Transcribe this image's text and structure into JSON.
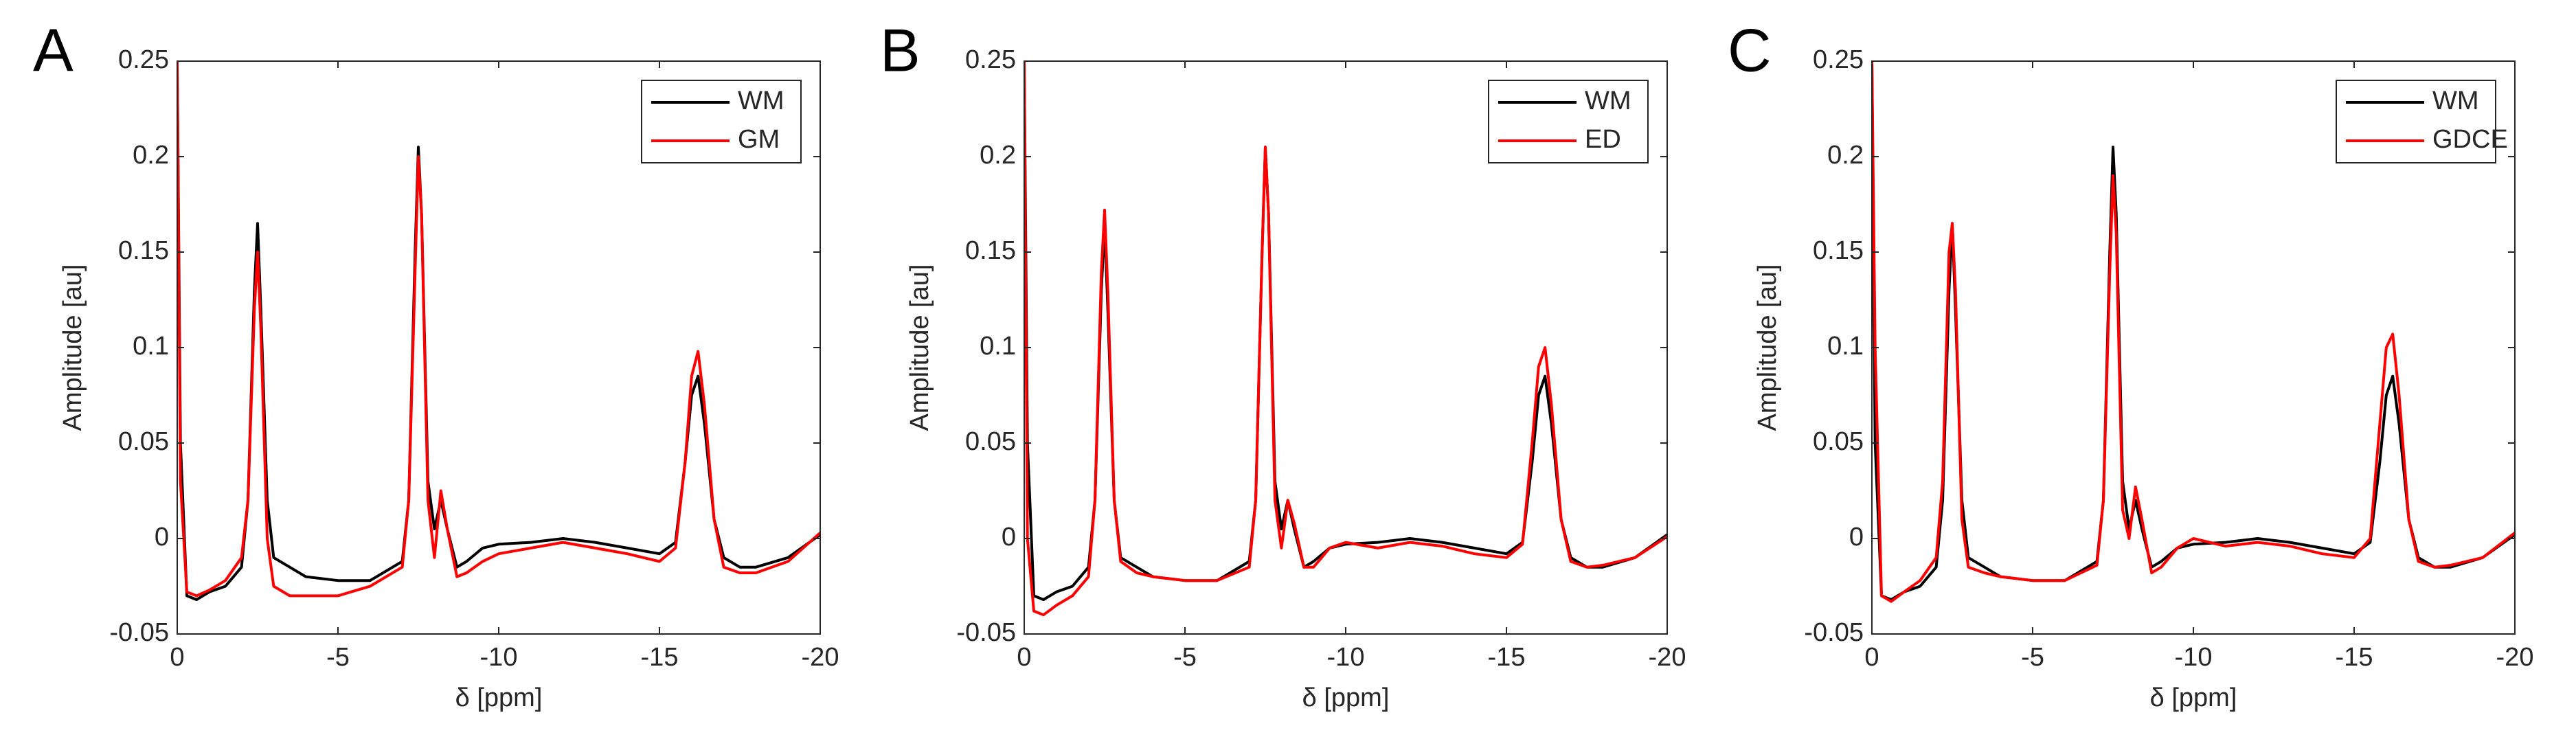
{
  "chart_data": [
    {
      "type": "line",
      "panel": "A",
      "xlabel": "δ [ppm]",
      "ylabel": "Amplitude [au]",
      "x": [
        0,
        -0.1,
        -0.3,
        -0.6,
        -1,
        -1.5,
        -2,
        -2.2,
        -2.4,
        -2.5,
        -2.6,
        -2.8,
        -3,
        -3.5,
        -4,
        -5,
        -6,
        -7,
        -7.2,
        -7.4,
        -7.5,
        -7.6,
        -7.8,
        -8,
        -8.2,
        -8.4,
        -8.7,
        -9,
        -9.5,
        -10,
        -11,
        -12,
        -13,
        -14,
        -15,
        -15.5,
        -15.8,
        -16,
        -16.2,
        -16.4,
        -16.7,
        -17,
        -17.5,
        -18,
        -19,
        -20
      ],
      "series": [
        {
          "name": "WM",
          "color": "#000000",
          "values": [
            0.25,
            0.05,
            -0.03,
            -0.032,
            -0.028,
            -0.025,
            -0.015,
            0.02,
            0.13,
            0.165,
            0.12,
            0.02,
            -0.01,
            -0.015,
            -0.02,
            -0.022,
            -0.022,
            -0.012,
            0.02,
            0.15,
            0.205,
            0.17,
            0.03,
            0.005,
            0.02,
            0.005,
            -0.015,
            -0.012,
            -0.005,
            -0.003,
            -0.002,
            0,
            -0.002,
            -0.005,
            -0.008,
            -0.002,
            0.04,
            0.075,
            0.085,
            0.06,
            0.01,
            -0.01,
            -0.015,
            -0.015,
            -0.01,
            0.002
          ]
        },
        {
          "name": "GM",
          "color": "#ff0000",
          "values": [
            0.25,
            0.03,
            -0.028,
            -0.03,
            -0.027,
            -0.022,
            -0.01,
            0.02,
            0.12,
            0.15,
            0.11,
            0,
            -0.025,
            -0.03,
            -0.03,
            -0.03,
            -0.025,
            -0.015,
            0.02,
            0.14,
            0.2,
            0.17,
            0.02,
            -0.01,
            0.025,
            0.005,
            -0.02,
            -0.018,
            -0.012,
            -0.008,
            -0.005,
            -0.002,
            -0.005,
            -0.008,
            -0.012,
            -0.005,
            0.04,
            0.085,
            0.098,
            0.07,
            0.01,
            -0.015,
            -0.018,
            -0.018,
            -0.012,
            0.003
          ]
        }
      ],
      "xlim": [
        0,
        -20
      ],
      "ylim": [
        -0.05,
        0.25
      ],
      "xticks": [
        0,
        -5,
        -10,
        -15,
        -20
      ],
      "yticks": [
        -0.05,
        0,
        0.05,
        0.1,
        0.15,
        0.2,
        0.25
      ],
      "legend": "upper right"
    },
    {
      "type": "line",
      "panel": "B",
      "xlabel": "δ [ppm]",
      "ylabel": "Amplitude [au]",
      "x": [
        0,
        -0.1,
        -0.3,
        -0.6,
        -1,
        -1.5,
        -2,
        -2.2,
        -2.4,
        -2.5,
        -2.6,
        -2.8,
        -3,
        -3.5,
        -4,
        -5,
        -6,
        -7,
        -7.2,
        -7.4,
        -7.5,
        -7.6,
        -7.8,
        -8,
        -8.2,
        -8.4,
        -8.7,
        -9,
        -9.5,
        -10,
        -11,
        -12,
        -13,
        -14,
        -15,
        -15.5,
        -15.8,
        -16,
        -16.2,
        -16.4,
        -16.7,
        -17,
        -17.5,
        -18,
        -19,
        -20
      ],
      "series": [
        {
          "name": "WM",
          "color": "#000000",
          "values": [
            0.25,
            0.05,
            -0.03,
            -0.032,
            -0.028,
            -0.025,
            -0.015,
            0.02,
            0.13,
            0.165,
            0.12,
            0.02,
            -0.01,
            -0.015,
            -0.02,
            -0.022,
            -0.022,
            -0.012,
            0.02,
            0.15,
            0.205,
            0.17,
            0.03,
            0.005,
            0.02,
            0.005,
            -0.015,
            -0.012,
            -0.005,
            -0.003,
            -0.002,
            0,
            -0.002,
            -0.005,
            -0.008,
            -0.002,
            0.04,
            0.075,
            0.085,
            0.06,
            0.01,
            -0.01,
            -0.015,
            -0.015,
            -0.01,
            0.002
          ]
        },
        {
          "name": "ED",
          "color": "#ff0000",
          "values": [
            0.25,
            0,
            -0.038,
            -0.04,
            -0.035,
            -0.03,
            -0.02,
            0.02,
            0.14,
            0.172,
            0.13,
            0.02,
            -0.012,
            -0.018,
            -0.02,
            -0.022,
            -0.022,
            -0.015,
            0.02,
            0.15,
            0.205,
            0.17,
            0.02,
            -0.005,
            0.02,
            0.008,
            -0.015,
            -0.015,
            -0.005,
            -0.002,
            -0.005,
            -0.002,
            -0.004,
            -0.008,
            -0.01,
            -0.003,
            0.05,
            0.09,
            0.1,
            0.07,
            0.01,
            -0.012,
            -0.015,
            -0.014,
            -0.01,
            0.001
          ]
        }
      ],
      "xlim": [
        0,
        -20
      ],
      "ylim": [
        -0.05,
        0.25
      ],
      "xticks": [
        0,
        -5,
        -10,
        -15,
        -20
      ],
      "yticks": [
        -0.05,
        0,
        0.05,
        0.1,
        0.15,
        0.2,
        0.25
      ],
      "legend": "upper right"
    },
    {
      "type": "line",
      "panel": "C",
      "xlabel": "δ [ppm]",
      "ylabel": "Amplitude [au]",
      "x": [
        0,
        -0.1,
        -0.3,
        -0.6,
        -1,
        -1.5,
        -2,
        -2.2,
        -2.4,
        -2.5,
        -2.6,
        -2.8,
        -3,
        -3.5,
        -4,
        -5,
        -6,
        -7,
        -7.2,
        -7.4,
        -7.5,
        -7.6,
        -7.8,
        -8,
        -8.2,
        -8.4,
        -8.7,
        -9,
        -9.5,
        -10,
        -11,
        -12,
        -13,
        -14,
        -15,
        -15.5,
        -15.8,
        -16,
        -16.2,
        -16.4,
        -16.7,
        -17,
        -17.5,
        -18,
        -19,
        -20
      ],
      "series": [
        {
          "name": "WM",
          "color": "#000000",
          "values": [
            0.25,
            0.05,
            -0.03,
            -0.032,
            -0.028,
            -0.025,
            -0.015,
            0.02,
            0.13,
            0.165,
            0.12,
            0.02,
            -0.01,
            -0.015,
            -0.02,
            -0.022,
            -0.022,
            -0.012,
            0.02,
            0.15,
            0.205,
            0.17,
            0.03,
            0.005,
            0.02,
            0.005,
            -0.015,
            -0.012,
            -0.005,
            -0.003,
            -0.002,
            0,
            -0.002,
            -0.005,
            -0.008,
            -0.002,
            0.04,
            0.075,
            0.085,
            0.06,
            0.01,
            -0.01,
            -0.015,
            -0.015,
            -0.01,
            0.002
          ]
        },
        {
          "name": "GDCE",
          "color": "#ff0000",
          "values": [
            0.25,
            0.1,
            -0.03,
            -0.033,
            -0.028,
            -0.022,
            -0.01,
            0.03,
            0.15,
            0.165,
            0.13,
            0.01,
            -0.015,
            -0.018,
            -0.02,
            -0.022,
            -0.022,
            -0.014,
            0.02,
            0.14,
            0.19,
            0.16,
            0.015,
            0,
            0.027,
            0.01,
            -0.018,
            -0.015,
            -0.005,
            0,
            -0.004,
            -0.002,
            -0.004,
            -0.008,
            -0.01,
            0,
            0.06,
            0.1,
            0.107,
            0.075,
            0.01,
            -0.012,
            -0.015,
            -0.014,
            -0.01,
            0.003
          ]
        }
      ],
      "xlim": [
        0,
        -20
      ],
      "ylim": [
        -0.05,
        0.25
      ],
      "xticks": [
        0,
        -5,
        -10,
        -15,
        -20
      ],
      "yticks": [
        -0.05,
        0,
        0.05,
        0.1,
        0.15,
        0.2,
        0.25
      ],
      "legend": "upper right"
    }
  ]
}
